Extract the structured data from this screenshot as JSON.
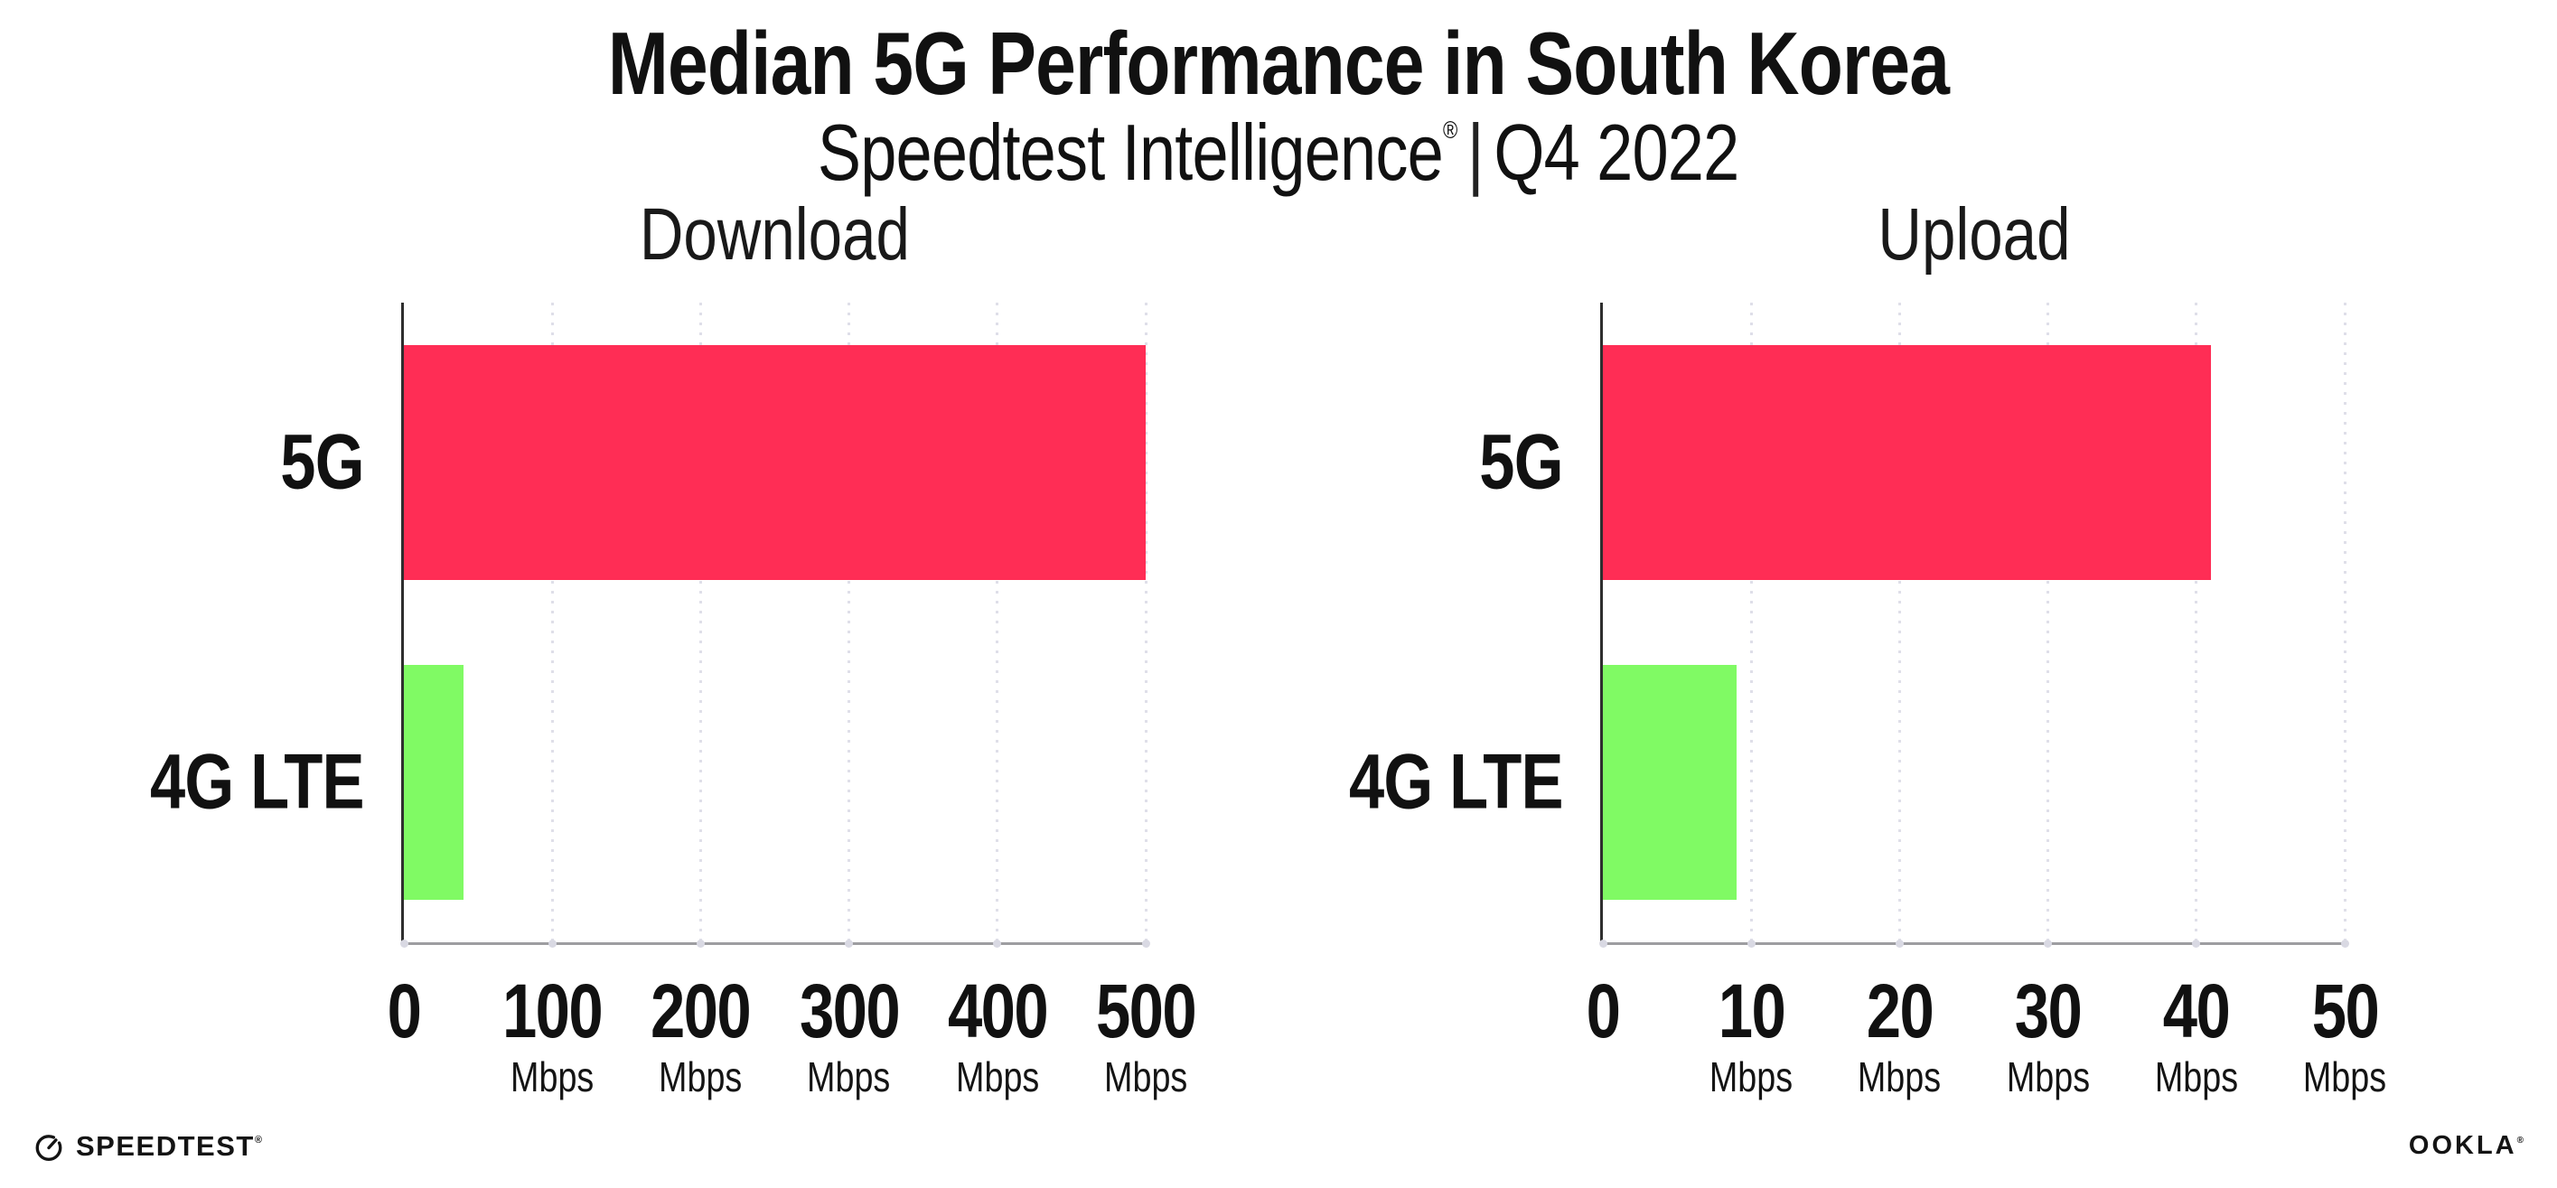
{
  "page": {
    "title": "Median 5G Performance in South Korea",
    "subtitle": {
      "brand": "Speedtest Intelligence",
      "registered": "®",
      "separator": "|",
      "period": "Q4 2022"
    }
  },
  "chart_data": {
    "type": "bar",
    "orientation": "horizontal",
    "categories": [
      "5G",
      "4G LTE"
    ],
    "grid": "dotted vertical gridlines",
    "legend": "none",
    "panels": [
      {
        "title": "Download",
        "unit": "Mbps",
        "xlim": [
          0,
          500
        ],
        "ticks": [
          0,
          100,
          200,
          300,
          400,
          500
        ],
        "series": [
          {
            "name": "5G",
            "value": 500
          },
          {
            "name": "4G LTE",
            "value": 40
          }
        ]
      },
      {
        "title": "Upload",
        "unit": "Mbps",
        "xlim": [
          0,
          50
        ],
        "ticks": [
          0,
          10,
          20,
          30,
          40,
          50
        ],
        "series": [
          {
            "name": "5G",
            "value": 41
          },
          {
            "name": "4G LTE",
            "value": 9
          }
        ]
      }
    ],
    "colors": {
      "5G": "#ff2d55",
      "4G LTE": "#80fa64"
    }
  },
  "footer": {
    "speedtest_label": "SPEEDTEST",
    "speedtest_registered": "®",
    "ookla_label": "OOKLA",
    "ookla_registered": "®"
  }
}
